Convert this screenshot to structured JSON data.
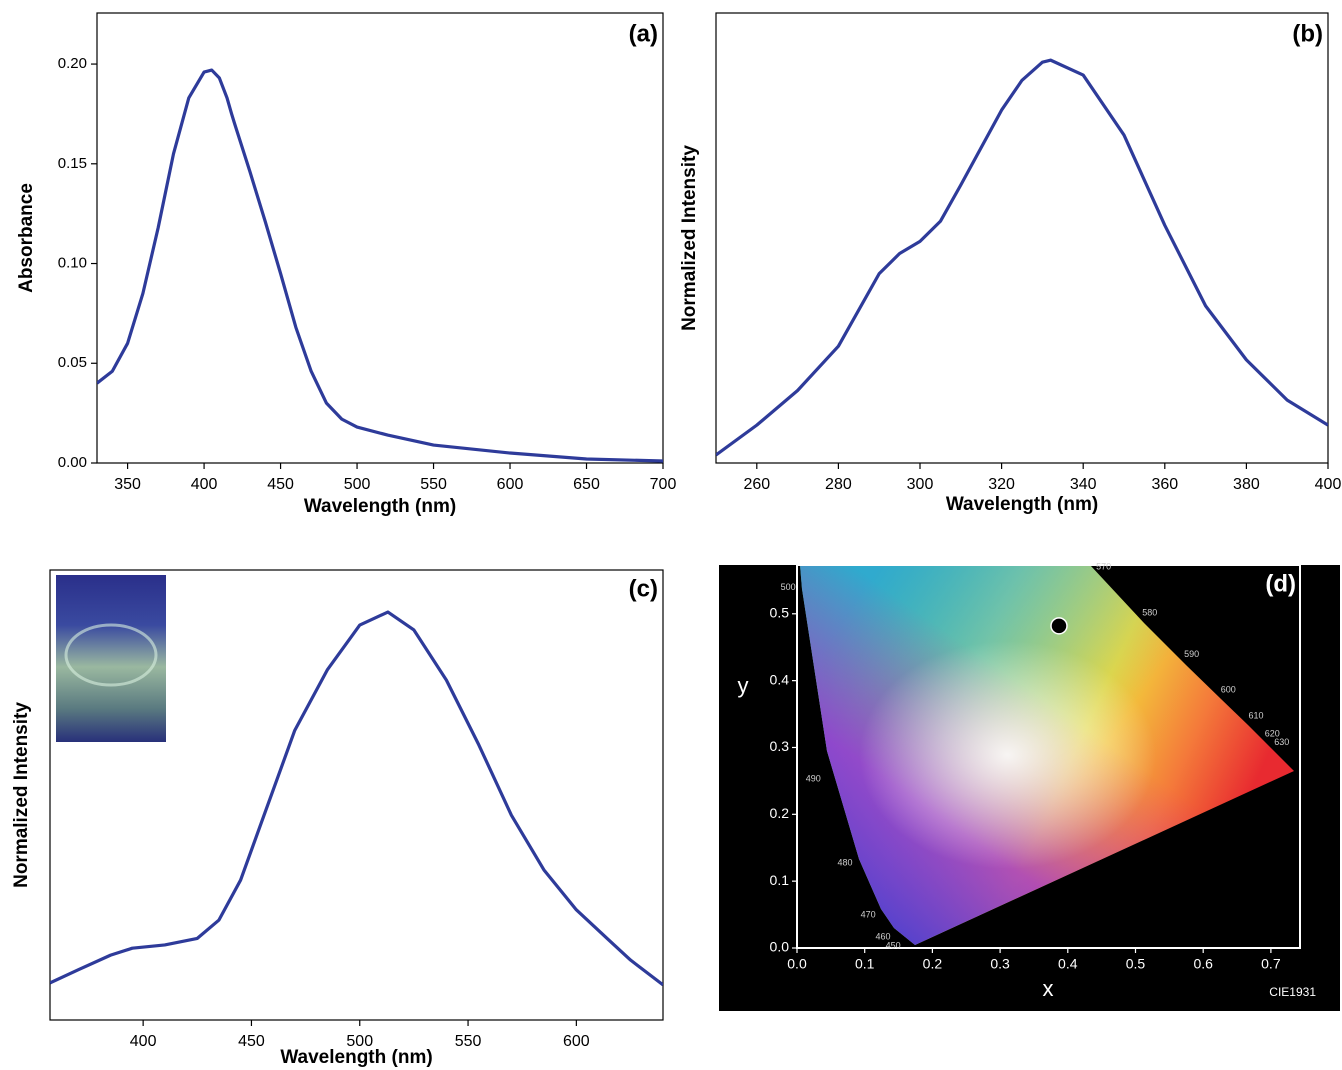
{
  "chart_data": [
    {
      "type": "line",
      "title": "(a)",
      "xlabel": "Wavelength (nm)",
      "ylabel": "Absorbance",
      "x": [
        330,
        340,
        350,
        360,
        370,
        380,
        390,
        400,
        405,
        410,
        415,
        418,
        420,
        430,
        440,
        450,
        460,
        470,
        480,
        490,
        500,
        520,
        550,
        600,
        650,
        700
      ],
      "values": [
        0.04,
        0.046,
        0.06,
        0.085,
        0.118,
        0.155,
        0.183,
        0.196,
        0.197,
        0.193,
        0.183,
        0.175,
        0.17,
        0.146,
        0.121,
        0.095,
        0.068,
        0.046,
        0.03,
        0.022,
        0.018,
        0.014,
        0.009,
        0.005,
        0.002,
        0.001
      ],
      "color": "#2e3b9a",
      "xlim": [
        330,
        700
      ],
      "ylim": [
        0,
        0.2256
      ],
      "xticks": [
        350,
        400,
        450,
        500,
        550,
        600,
        650,
        700
      ],
      "yticks": [
        {
          "value": 0,
          "label": "0.00"
        },
        0.05,
        {
          "value": 0.1,
          "label": "0.10"
        },
        0.15,
        {
          "value": 0.2,
          "label": "0.20"
        }
      ]
    },
    {
      "type": "line",
      "title": "(b)",
      "xlabel": "Wavelength (nm)",
      "ylabel": "Normalized Intensity",
      "x": [
        250,
        260,
        270,
        280,
        290,
        295,
        300,
        305,
        310,
        320,
        325,
        330,
        332,
        340,
        350,
        360,
        370,
        380,
        390,
        400
      ],
      "values": [
        0.02,
        0.094,
        0.18,
        0.29,
        0.47,
        0.52,
        0.55,
        0.6,
        0.69,
        0.876,
        0.95,
        0.995,
        1.0,
        0.963,
        0.814,
        0.59,
        0.39,
        0.256,
        0.156,
        0.094
      ],
      "color": "#2e3b9a",
      "xlim": [
        250,
        400
      ],
      "ylim": [
        0,
        1.117
      ],
      "xticks": [
        260,
        280,
        300,
        320,
        340,
        360,
        380,
        400
      ]
    },
    {
      "type": "line",
      "title": "(c)",
      "xlabel": "Wavelength (nm)",
      "ylabel": "Normalized Intensity",
      "x": [
        357,
        370,
        385,
        395,
        410,
        425,
        435,
        445,
        455,
        470,
        485,
        500,
        513,
        525,
        540,
        555,
        570,
        585,
        600,
        615,
        625,
        640
      ],
      "values": [
        0.091,
        0.123,
        0.159,
        0.176,
        0.184,
        0.2,
        0.245,
        0.343,
        0.49,
        0.71,
        0.858,
        0.968,
        1.0,
        0.956,
        0.833,
        0.674,
        0.502,
        0.368,
        0.27,
        0.196,
        0.147,
        0.086
      ],
      "color": "#2e3b9a",
      "xlim": [
        357,
        640
      ],
      "ylim": [
        0,
        1.103
      ],
      "xticks": [
        400,
        450,
        500,
        550,
        600
      ]
    },
    {
      "type": "scatter",
      "title": "(d)",
      "xlabel": "x",
      "ylabel": "y",
      "caption": "CIE1931",
      "x": [
        0.387
      ],
      "values": [
        0.482
      ],
      "color": "#000000",
      "xlim": [
        0,
        0.743
      ],
      "ylim": [
        0,
        0.573
      ],
      "xticks": [
        {
          "value": 0,
          "label": "0.0"
        },
        0.1,
        0.2,
        0.3,
        0.4,
        0.5,
        0.6,
        0.7
      ],
      "yticks": [
        {
          "value": 0,
          "label": "0.0"
        },
        0.1,
        0.2,
        0.3,
        0.4,
        0.5
      ],
      "annotations": [
        {
          "text": "450",
          "x": 0.142,
          "y": 0.003
        },
        {
          "text": "460",
          "x": 0.127,
          "y": 0.016
        },
        {
          "text": "470",
          "x": 0.105,
          "y": 0.049
        },
        {
          "text": "480",
          "x": 0.071,
          "y": 0.127
        },
        {
          "text": "490",
          "x": 0.024,
          "y": 0.253
        },
        {
          "text": "500",
          "x": -0.013,
          "y": 0.539
        },
        {
          "text": "570",
          "x": 0.453,
          "y": 0.57
        },
        {
          "text": "580",
          "x": 0.521,
          "y": 0.501
        },
        {
          "text": "590",
          "x": 0.583,
          "y": 0.439
        },
        {
          "text": "600",
          "x": 0.637,
          "y": 0.386
        },
        {
          "text": "610",
          "x": 0.678,
          "y": 0.347
        },
        {
          "text": "620",
          "x": 0.702,
          "y": 0.32
        },
        {
          "text": "630",
          "x": 0.716,
          "y": 0.307
        }
      ]
    }
  ]
}
